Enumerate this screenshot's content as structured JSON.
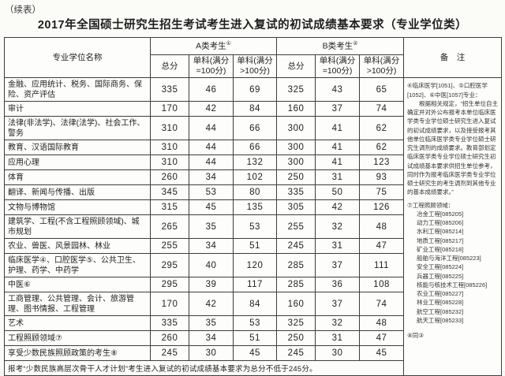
{
  "page": {
    "continued_label": "（续表）",
    "title": "2017年全国硕士研究生招生考试考生进入复试的初试成绩基本要求（专业学位类）"
  },
  "table": {
    "header": {
      "col_name": "专业学位名称",
      "group_a": "A类考生",
      "group_a_sup": "①",
      "group_b": "B类考生",
      "group_b_sup": "②",
      "total": "总分",
      "single_eq": "单科(满分=100分)",
      "single_gt": "单科(满分>100分)",
      "remarks_label": "备　注"
    },
    "rows": [
      {
        "name": "金融、应用统计、税务、国际商务、保险、资产评估",
        "a": [
          335,
          46,
          69
        ],
        "b": [
          325,
          43,
          65
        ]
      },
      {
        "name": "审计",
        "a": [
          170,
          42,
          84
        ],
        "b": [
          160,
          37,
          74
        ]
      },
      {
        "name": "法律(非法学)、法律(法学)、社会工作、警务",
        "a": [
          310,
          44,
          66
        ],
        "b": [
          300,
          41,
          62
        ]
      },
      {
        "name": "教育、汉语国际教育",
        "a": [
          310,
          44,
          66
        ],
        "b": [
          300,
          41,
          62
        ]
      },
      {
        "name": "应用心理",
        "a": [
          310,
          44,
          132
        ],
        "b": [
          300,
          41,
          123
        ]
      },
      {
        "name": "体育",
        "a": [
          260,
          34,
          102
        ],
        "b": [
          250,
          31,
          93
        ]
      },
      {
        "name": "翻译、新闻与传播、出版",
        "a": [
          345,
          53,
          80
        ],
        "b": [
          335,
          50,
          75
        ]
      },
      {
        "name": "文物与博物馆",
        "a": [
          315,
          45,
          135
        ],
        "b": [
          305,
          42,
          126
        ]
      },
      {
        "name": "建筑学、工程(不含工程照顾领域)、城市规划",
        "a": [
          265,
          35,
          53
        ],
        "b": [
          255,
          32,
          48
        ]
      },
      {
        "name": "农业、兽医、风景园林、林业",
        "a": [
          255,
          34,
          51
        ],
        "b": [
          245,
          31,
          47
        ]
      },
      {
        "name": "临床医学④、口腔医学⑤、公共卫生、护理、药学、中药学",
        "a": [
          295,
          40,
          120
        ],
        "b": [
          285,
          37,
          111
        ]
      },
      {
        "name": "中医⑥",
        "a": [
          295,
          39,
          117
        ],
        "b": [
          285,
          36,
          108
        ]
      },
      {
        "name": "工商管理、公共管理、会计、旅游管理、图书情报、工程管理",
        "a": [
          170,
          42,
          84
        ],
        "b": [
          160,
          37,
          74
        ]
      },
      {
        "name": "艺术",
        "a": [
          335,
          35,
          53
        ],
        "b": [
          325,
          32,
          48
        ]
      },
      {
        "name": "工程照顾领域⑦",
        "a": [
          260,
          34,
          51
        ],
        "b": [
          250,
          31,
          47
        ]
      },
      {
        "name": "享受少数民族照顾政策的考生⑧",
        "a": [
          245,
          30,
          45
        ],
        "b": [
          245,
          30,
          45
        ]
      }
    ],
    "footer_note": "报考“少数民族高层次骨干人才计划”考生进入复试的初试成绩基本要求为总分不低于245分。",
    "remarks": {
      "clinical_line": "④临床医学[1051]、⑤口腔医学[1052]、⑥中医[1057]专业：",
      "clinical_body": "根据相关规定，“招生单位自主确定并对外公布报考本单位临床医学类专业学位硕士研究生进入复试的初试成绩要求，以及接受报考其他单位临床医学类专业学位硕士研究生调剂的成绩要求。教育部划定临床医学类专业学位硕士研究生初试成绩基本要求供招生单位参考，同时作为报考临床医学类专业学位硕士研究生的考生调剂到其他专业的基本成绩要求。”",
      "engineering_title": "⑦工程照顾领域：",
      "engineering_fields": [
        "冶金工程[085205]",
        "动力工程[085206]",
        "水利工程[085214]",
        "地质工程[085217]",
        "矿业工程[085218]",
        "船舶与海洋工程[085223]",
        "安全工程[085224]",
        "兵器工程[085225]",
        "核能与核技术工程[085226]",
        "农业工程[085227]",
        "林业工程[085228]",
        "航空工程[085232]",
        "航天工程[085233]"
      ],
      "same_note": "⑧同③"
    }
  }
}
